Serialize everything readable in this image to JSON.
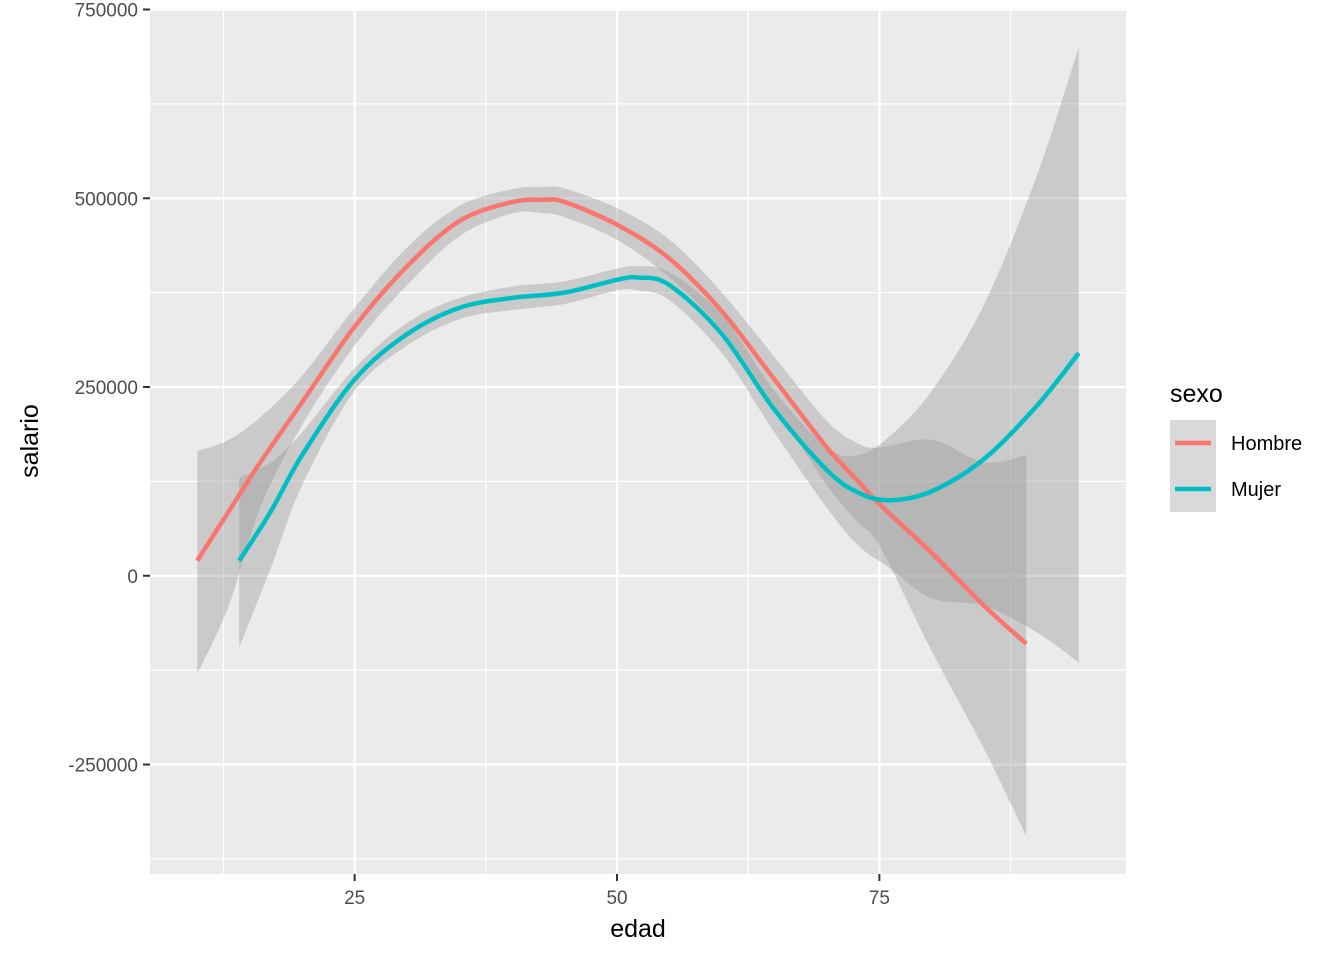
{
  "chart_data": {
    "type": "line",
    "xlabel": "edad",
    "ylabel": "salario",
    "xlim": [
      5.5,
      98.5
    ],
    "ylim": [
      -395000,
      752000
    ],
    "x_ticks": [
      25,
      50,
      75
    ],
    "x_tick_labels": [
      "25",
      "50",
      "75"
    ],
    "x_minor_ticks": [
      12.5,
      37.5,
      62.5,
      87.5
    ],
    "y_ticks": [
      -250000,
      0,
      250000,
      500000,
      750000
    ],
    "y_tick_labels": [
      "-250000",
      "0",
      "250000",
      "500000",
      "750000"
    ],
    "y_minor_ticks": [
      -375000,
      -125000,
      125000,
      375000,
      625000
    ],
    "grid": true,
    "panel_background": "#ebebeb",
    "ribbon_color": "#999999",
    "legend": {
      "title": "sexo",
      "position": "right",
      "entries": [
        {
          "label": "Hombre",
          "color": "#f8766d"
        },
        {
          "label": "Mujer",
          "color": "#00bfc4"
        }
      ]
    },
    "series": [
      {
        "name": "Hombre",
        "color": "#f8766d",
        "x": [
          10,
          13,
          16,
          20,
          25,
          30,
          35,
          40,
          43,
          45,
          50,
          55,
          60,
          65,
          70,
          73,
          75,
          80,
          85,
          89
        ],
        "y": [
          20000,
          85000,
          150000,
          230000,
          330000,
          410000,
          470000,
          495000,
          498000,
          495000,
          465000,
          420000,
          350000,
          260000,
          170000,
          125000,
          95000,
          30000,
          -40000,
          -90000
        ],
        "lower": [
          -130000,
          -40000,
          90000,
          200000,
          305000,
          385000,
          450000,
          480000,
          480000,
          475000,
          445000,
          395000,
          325000,
          225000,
          120000,
          70000,
          40000,
          -100000,
          -230000,
          -345000
        ],
        "upper": [
          165000,
          180000,
          210000,
          265000,
          355000,
          435000,
          490000,
          512000,
          515000,
          513000,
          487000,
          445000,
          375000,
          290000,
          205000,
          175000,
          170000,
          180000,
          150000,
          160000
        ]
      },
      {
        "name": "Mujer",
        "color": "#00bfc4",
        "x": [
          14,
          17,
          20,
          25,
          30,
          35,
          40,
          45,
          50,
          52,
          55,
          60,
          65,
          70,
          73,
          76,
          80,
          85,
          90,
          94
        ],
        "y": [
          20000,
          85000,
          160000,
          260000,
          320000,
          355000,
          368000,
          375000,
          392000,
          395000,
          385000,
          320000,
          220000,
          140000,
          110000,
          100000,
          112000,
          155000,
          225000,
          295000
        ],
        "lower": [
          -95000,
          10000,
          120000,
          245000,
          305000,
          340000,
          352000,
          360000,
          378000,
          378000,
          365000,
          295000,
          190000,
          90000,
          40000,
          10000,
          -30000,
          -40000,
          -75000,
          -115000
        ],
        "upper": [
          130000,
          150000,
          190000,
          275000,
          335000,
          368000,
          383000,
          390000,
          407000,
          410000,
          402000,
          345000,
          245000,
          170000,
          160000,
          185000,
          245000,
          360000,
          530000,
          700000
        ]
      }
    ]
  }
}
